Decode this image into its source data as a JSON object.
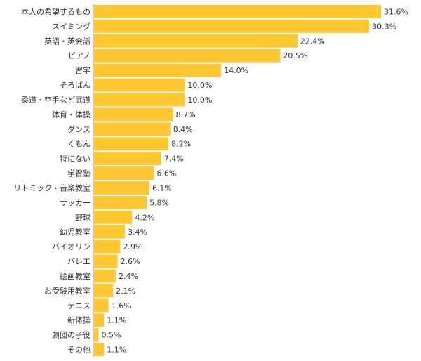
{
  "chart_data": {
    "type": "bar",
    "orientation": "horizontal",
    "categories": [
      "本人の希望するもの",
      "スイミング",
      "英語・英会話",
      "ピアノ",
      "習字",
      "そろばん",
      "柔道・空手など武道",
      "体育・体操",
      "ダンス",
      "くもん",
      "特にない",
      "学習塾",
      "リトミック・音楽教室",
      "サッカー",
      "野球",
      "幼児教室",
      "バイオリン",
      "バレエ",
      "絵画教室",
      "お受験用教室",
      "テニス",
      "新体操",
      "劇団の子役",
      "その他"
    ],
    "values": [
      31.6,
      30.3,
      22.4,
      20.5,
      14.0,
      10.0,
      10.0,
      8.7,
      8.4,
      8.2,
      7.4,
      6.6,
      6.1,
      5.8,
      4.2,
      3.4,
      2.9,
      2.6,
      2.4,
      2.1,
      1.6,
      1.1,
      0.5,
      1.1
    ],
    "value_labels": [
      "31.6%",
      "30.3%",
      "22.4%",
      "20.5%",
      "14.0%",
      "10.0%",
      "10.0%",
      "8.7%",
      "8.4%",
      "8.2%",
      "7.4%",
      "6.6%",
      "6.1%",
      "5.8%",
      "4.2%",
      "3.4%",
      "2.9%",
      "2.6%",
      "2.4%",
      "2.1%",
      "1.6%",
      "1.1%",
      "0.5%",
      "1.1%"
    ],
    "xlim": [
      0,
      31.6
    ],
    "bar_color": "#ffc832",
    "axis_color": "#999999",
    "title": "",
    "xlabel": "",
    "ylabel": "",
    "grid": false,
    "legend": "none"
  }
}
